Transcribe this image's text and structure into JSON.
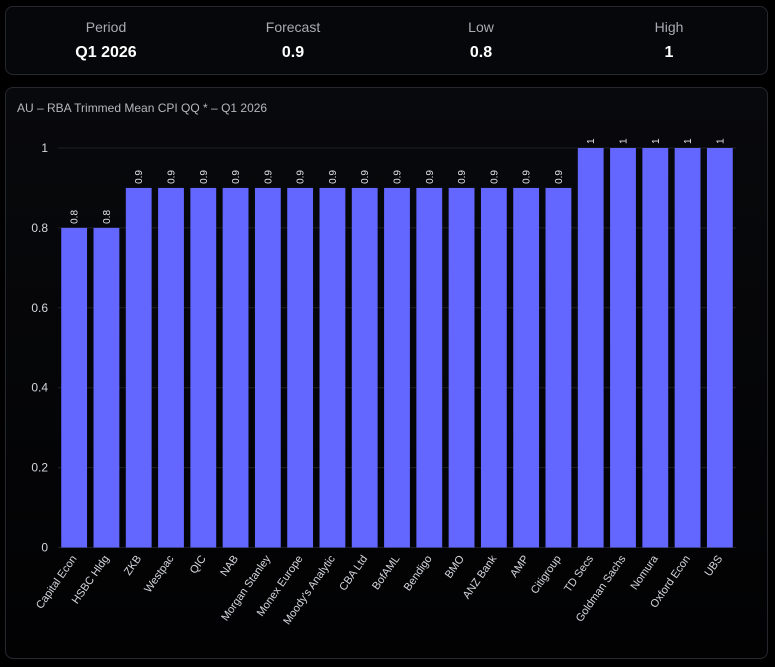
{
  "stats": {
    "period_label": "Period",
    "period_value": "Q1 2026",
    "forecast_label": "Forecast",
    "forecast_value": "0.9",
    "low_label": "Low",
    "low_value": "0.8",
    "high_label": "High",
    "high_value": "1"
  },
  "colors": {
    "bar": "#6366ff",
    "grid": "#1e2026",
    "tick_text": "#d4d6dc",
    "data_label": "#e2e3e8"
  },
  "chart_data": {
    "type": "bar",
    "title": "AU – RBA Trimmed Mean CPI QQ * – Q1 2026",
    "xlabel": "",
    "ylabel": "",
    "ylim": [
      0,
      1.05
    ],
    "yticks": [
      0,
      0.2,
      0.4,
      0.6,
      0.8,
      1
    ],
    "ytick_labels": [
      "0",
      "0.2",
      "0.4",
      "0.6",
      "0.8",
      "1"
    ],
    "categories": [
      "Capital Econ",
      "HSBC Hldg",
      "ZKB",
      "Westpac",
      "QIC",
      "NAB",
      "Morgan Stanley",
      "Monex Europe",
      "Moody's Analytic",
      "CBA Ltd",
      "BofAML",
      "Bendigo",
      "BMO",
      "ANZ Bank",
      "AMP",
      "Citigroup",
      "TD Secs",
      "Goldman Sachs",
      "Nomura",
      "Oxford Econ",
      "UBS"
    ],
    "values": [
      0.8,
      0.8,
      0.9,
      0.9,
      0.9,
      0.9,
      0.9,
      0.9,
      0.9,
      0.9,
      0.9,
      0.9,
      0.9,
      0.9,
      0.9,
      0.9,
      1,
      1,
      1,
      1,
      1
    ],
    "value_labels": [
      "0.8",
      "0.8",
      "0.9",
      "0.9",
      "0.9",
      "0.9",
      "0.9",
      "0.9",
      "0.9",
      "0.9",
      "0.9",
      "0.9",
      "0.9",
      "0.9",
      "0.9",
      "0.9",
      "1",
      "1",
      "1",
      "1",
      "1"
    ]
  }
}
